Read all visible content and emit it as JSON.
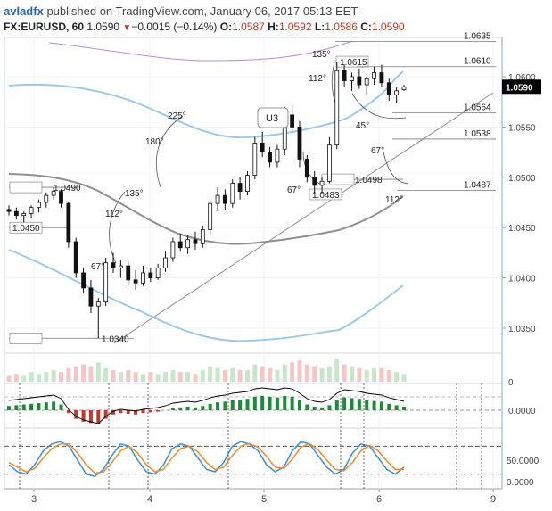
{
  "header": {
    "author": "avladfx",
    "published_text": "published on TradingView.com, January 06, 2017 05:13 EET",
    "symbol": "FX:EURUSD, 60",
    "last": "1.0590",
    "change": "−0.0015 (−0.14%)",
    "o_label": "O:",
    "o_value": "1.0587",
    "h_label": "H:",
    "h_value": "1.0592",
    "l_label": "L:",
    "l_value": "1.0586",
    "c_label": "C:",
    "c_value": "1.0590"
  },
  "colors": {
    "bear": "#c0392b",
    "bull": "#1e8a3a",
    "price_axis_badge": "#000000",
    "bollinger": "#9ec9ea",
    "ma": "#8f8f8f",
    "upper_band": "#b48fd6",
    "stoch_k": "#3a8fd8",
    "stoch_d": "#f08c2c"
  },
  "chart_data": [
    {
      "type": "line",
      "title": "FX:EURUSD, 60",
      "ylim": [
        1.03,
        1.066
      ],
      "y_ticks": [
        "1.0600",
        "1.0550",
        "1.0500",
        "1.0450",
        "1.0400",
        "1.0350"
      ],
      "x_ticks": [
        "3",
        "4",
        "5",
        "6",
        "9"
      ],
      "current_price_label": "1.0590",
      "price_levels": [
        {
          "label": "1.0635",
          "value": 1.0635
        },
        {
          "label": "1.0615",
          "value": 1.0615
        },
        {
          "label": "1.0610",
          "value": 1.061
        },
        {
          "label": "1.0564",
          "value": 1.0564
        },
        {
          "label": "1.0538",
          "value": 1.0538
        },
        {
          "label": "1.0498",
          "value": 1.0498
        },
        {
          "label": "1.0490",
          "value": 1.049
        },
        {
          "label": "1.0487",
          "value": 1.0487
        },
        {
          "label": "1.0483",
          "value": 1.0483
        },
        {
          "label": "1.0450",
          "value": 1.045
        },
        {
          "label": "1.0340",
          "value": 1.034
        }
      ],
      "angle_labels": [
        "225°",
        "180°",
        "135°",
        "112°",
        "67°",
        "135°",
        "112°",
        "67°",
        "45°",
        "67°",
        "112°"
      ],
      "pattern_label": "U3",
      "candles": [
        [
          1.0468,
          1.0472,
          1.0462,
          1.0466
        ],
        [
          1.0466,
          1.047,
          1.0458,
          1.0462
        ],
        [
          1.0462,
          1.0466,
          1.0455,
          1.0464
        ],
        [
          1.0464,
          1.0472,
          1.046,
          1.047
        ],
        [
          1.047,
          1.0478,
          1.0465,
          1.0475
        ],
        [
          1.0475,
          1.0485,
          1.047,
          1.0482
        ],
        [
          1.0482,
          1.049,
          1.0478,
          1.0486
        ],
        [
          1.0486,
          1.0488,
          1.047,
          1.0474
        ],
        [
          1.0474,
          1.0476,
          1.043,
          1.0436
        ],
        [
          1.0436,
          1.044,
          1.04,
          1.0405
        ],
        [
          1.0405,
          1.041,
          1.0385,
          1.039
        ],
        [
          1.039,
          1.0398,
          1.0365,
          1.0372
        ],
        [
          1.0372,
          1.038,
          1.034,
          1.0376
        ],
        [
          1.0376,
          1.042,
          1.0372,
          1.0415
        ],
        [
          1.0415,
          1.0425,
          1.0405,
          1.041
        ],
        [
          1.041,
          1.0418,
          1.04,
          1.0412
        ],
        [
          1.0412,
          1.0416,
          1.0392,
          1.0398
        ],
        [
          1.0398,
          1.0408,
          1.0388,
          1.0395
        ],
        [
          1.0395,
          1.0412,
          1.0392,
          1.0405
        ],
        [
          1.0405,
          1.041,
          1.0396,
          1.04
        ],
        [
          1.04,
          1.0414,
          1.0398,
          1.041
        ],
        [
          1.041,
          1.0426,
          1.0406,
          1.042
        ],
        [
          1.042,
          1.044,
          1.0416,
          1.0436
        ],
        [
          1.0436,
          1.0444,
          1.0426,
          1.043
        ],
        [
          1.043,
          1.0442,
          1.0424,
          1.0438
        ],
        [
          1.0438,
          1.0446,
          1.0428,
          1.0434
        ],
        [
          1.0434,
          1.0452,
          1.043,
          1.0448
        ],
        [
          1.0448,
          1.0478,
          1.0444,
          1.0474
        ],
        [
          1.0474,
          1.049,
          1.0466,
          1.0482
        ],
        [
          1.0482,
          1.0488,
          1.0468,
          1.0474
        ],
        [
          1.0474,
          1.0498,
          1.047,
          1.0494
        ],
        [
          1.0494,
          1.05,
          1.0478,
          1.0486
        ],
        [
          1.0486,
          1.0506,
          1.0482,
          1.0502
        ],
        [
          1.0502,
          1.054,
          1.0498,
          1.0534
        ],
        [
          1.0534,
          1.0545,
          1.052,
          1.0525
        ],
        [
          1.0525,
          1.053,
          1.051,
          1.0515
        ],
        [
          1.0515,
          1.0532,
          1.051,
          1.0528
        ],
        [
          1.0528,
          1.057,
          1.0522,
          1.0562
        ],
        [
          1.0562,
          1.0572,
          1.0545,
          1.055
        ],
        [
          1.055,
          1.0556,
          1.051,
          1.0518
        ],
        [
          1.0518,
          1.0522,
          1.0495,
          1.05
        ],
        [
          1.05,
          1.0506,
          1.0484,
          1.0492
        ],
        [
          1.0492,
          1.05,
          1.0483,
          1.0496
        ],
        [
          1.0496,
          1.054,
          1.0494,
          1.0532
        ],
        [
          1.0532,
          1.0615,
          1.0528,
          1.0606
        ],
        [
          1.0606,
          1.0612,
          1.059,
          1.0596
        ],
        [
          1.0596,
          1.0604,
          1.0586,
          1.06
        ],
        [
          1.06,
          1.0608,
          1.0588,
          1.0592
        ],
        [
          1.0592,
          1.06,
          1.0582,
          1.0598
        ],
        [
          1.0598,
          1.061,
          1.0592,
          1.0604
        ],
        [
          1.0604,
          1.0612,
          1.059,
          1.0594
        ],
        [
          1.0594,
          1.0598,
          1.0576,
          1.0582
        ],
        [
          1.0582,
          1.059,
          1.0574,
          1.0586
        ],
        [
          1.0587,
          1.0592,
          1.0586,
          1.059
        ]
      ]
    },
    {
      "type": "bar",
      "title": "Volume",
      "y_ticks": [
        "0"
      ],
      "values": [
        3,
        4,
        3,
        5,
        4,
        5,
        6,
        5,
        7,
        8,
        9,
        8,
        10,
        7,
        6,
        5,
        6,
        5,
        4,
        5,
        4,
        5,
        6,
        5,
        5,
        4,
        6,
        8,
        7,
        6,
        7,
        6,
        6,
        9,
        8,
        7,
        6,
        9,
        10,
        11,
        9,
        8,
        7,
        8,
        12,
        9,
        8,
        7,
        6,
        7,
        7,
        6,
        5,
        4
      ]
    },
    {
      "type": "bar",
      "title": "Oscillator",
      "y_ticks": [
        "0.0000"
      ],
      "values": [
        0.3,
        0.35,
        0.4,
        0.45,
        0.5,
        0.55,
        0.6,
        0.4,
        -0.2,
        -0.6,
        -0.8,
        -0.9,
        -1.0,
        -0.6,
        -0.3,
        -0.2,
        -0.25,
        -0.3,
        -0.2,
        -0.15,
        -0.1,
        0.0,
        0.15,
        0.2,
        0.25,
        0.2,
        0.3,
        0.45,
        0.55,
        0.6,
        0.7,
        0.75,
        0.8,
        0.95,
        1.0,
        0.95,
        0.9,
        1.0,
        0.95,
        0.7,
        0.4,
        0.25,
        0.2,
        0.35,
        0.7,
        0.9,
        0.85,
        0.8,
        0.7,
        0.65,
        0.6,
        0.45,
        0.35,
        0.25
      ]
    },
    {
      "type": "line",
      "title": "Stochastic",
      "y_ticks": [
        "50.0000",
        "0.0000"
      ],
      "series": [
        {
          "values": [
            40,
            25,
            20,
            40,
            70,
            85,
            90,
            80,
            50,
            20,
            15,
            30,
            60,
            85,
            80,
            50,
            25,
            20,
            40,
            75,
            85,
            80,
            55,
            30,
            25,
            45,
            80,
            90,
            85,
            70,
            40,
            25,
            35,
            70,
            90,
            85,
            60,
            35,
            20,
            30,
            65,
            85,
            80,
            55,
            30,
            20,
            35
          ]
        },
        {
          "values": [
            45,
            35,
            25,
            32,
            55,
            75,
            85,
            85,
            65,
            40,
            22,
            25,
            45,
            70,
            80,
            65,
            40,
            25,
            30,
            55,
            75,
            80,
            68,
            45,
            30,
            35,
            60,
            80,
            86,
            78,
            58,
            35,
            32,
            52,
            78,
            86,
            72,
            50,
            30,
            27,
            45,
            70,
            82,
            70,
            48,
            30,
            30
          ]
        }
      ]
    }
  ]
}
